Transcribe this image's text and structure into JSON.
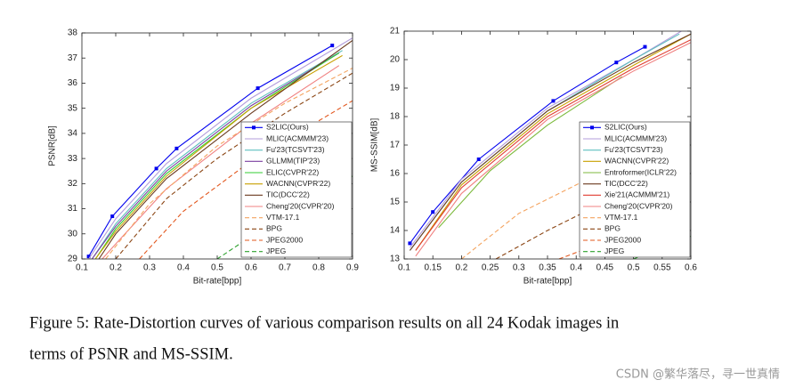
{
  "chart_data": [
    {
      "type": "line",
      "xlabel": "Bit-rate[bpp]",
      "ylabel": "PSNR[dB]",
      "xlim": [
        0.1,
        0.9
      ],
      "ylim": [
        29,
        38
      ],
      "xticks": [
        0.1,
        0.2,
        0.3,
        0.4,
        0.5,
        0.6,
        0.7,
        0.8,
        0.9
      ],
      "yticks": [
        29,
        30,
        31,
        32,
        33,
        34,
        35,
        36,
        37,
        38
      ],
      "legend": "lower right",
      "series": [
        {
          "name": "S2LIC(Ours)",
          "color": "#0000ee",
          "marker": "square",
          "x": [
            0.12,
            0.19,
            0.32,
            0.38,
            0.62,
            0.84
          ],
          "values": [
            29.1,
            30.7,
            32.6,
            33.4,
            35.8,
            37.5
          ]
        },
        {
          "name": "MLIC(ACMMM'23)",
          "color": "#b39ddb",
          "x": [
            0.12,
            0.2,
            0.35,
            0.6,
            0.9
          ],
          "values": [
            29.0,
            30.6,
            32.8,
            35.4,
            37.8
          ]
        },
        {
          "name": "Fu'23(TCSVT'23)",
          "color": "#5fbfbf",
          "x": [
            0.13,
            0.2,
            0.35,
            0.6,
            0.87
          ],
          "values": [
            29.0,
            30.4,
            32.6,
            35.2,
            37.3
          ]
        },
        {
          "name": "GLLMM(TIP'23)",
          "color": "#7b3fa0",
          "x": [
            0.13,
            0.2,
            0.35,
            0.6,
            0.86
          ],
          "values": [
            29.0,
            30.3,
            32.5,
            35.1,
            37.2
          ]
        },
        {
          "name": "ELIC(CVPR'22)",
          "color": "#33cc33",
          "x": [
            0.14,
            0.2,
            0.35,
            0.6,
            0.86
          ],
          "values": [
            29.0,
            30.2,
            32.4,
            35.0,
            37.2
          ]
        },
        {
          "name": "WACNN(CVPR'22)",
          "color": "#c8a000",
          "x": [
            0.14,
            0.2,
            0.35,
            0.6,
            0.87
          ],
          "values": [
            29.0,
            30.1,
            32.3,
            35.0,
            37.1
          ]
        },
        {
          "name": "TIC(DCC'22)",
          "color": "#6b3a1f",
          "x": [
            0.15,
            0.2,
            0.35,
            0.6,
            0.9
          ],
          "values": [
            29.0,
            30.0,
            32.2,
            34.8,
            37.7
          ]
        },
        {
          "name": "Cheng'20(CVPR'20)",
          "color": "#f08080",
          "x": [
            0.16,
            0.2,
            0.35,
            0.6,
            0.86
          ],
          "values": [
            29.0,
            29.6,
            31.8,
            34.4,
            36.7
          ]
        },
        {
          "name": "VTM-17.1",
          "color": "#f4a460",
          "dashed": true,
          "x": [
            0.17,
            0.3,
            0.5,
            0.7,
            0.9
          ],
          "values": [
            29.0,
            31.2,
            33.5,
            35.2,
            36.6
          ]
        },
        {
          "name": "BPG",
          "color": "#8b4513",
          "dashed": true,
          "x": [
            0.2,
            0.35,
            0.5,
            0.7,
            0.9
          ],
          "values": [
            29.0,
            31.4,
            33.0,
            34.8,
            36.4
          ]
        },
        {
          "name": "JPEG2000",
          "color": "#e2571e",
          "dashed": true,
          "x": [
            0.27,
            0.4,
            0.6,
            0.9
          ],
          "values": [
            29.0,
            30.9,
            32.9,
            35.3
          ]
        },
        {
          "name": "JPEG",
          "color": "#2ca02c",
          "dashed": true,
          "x": [
            0.5,
            0.7,
            0.9
          ],
          "values": [
            29.0,
            30.8,
            32.3
          ]
        }
      ]
    },
    {
      "type": "line",
      "xlabel": "Bit-rate[bpp]",
      "ylabel": "MS-SSIM[dB]",
      "xlim": [
        0.1,
        0.6
      ],
      "ylim": [
        13,
        21
      ],
      "xticks": [
        0.1,
        0.15,
        0.2,
        0.25,
        0.3,
        0.35,
        0.4,
        0.45,
        0.5,
        0.55,
        0.6
      ],
      "yticks": [
        13,
        14,
        15,
        16,
        17,
        18,
        19,
        20,
        21
      ],
      "legend": "lower right",
      "series": [
        {
          "name": "S2LIC(Ours)",
          "color": "#0000ee",
          "marker": "square",
          "x": [
            0.11,
            0.15,
            0.23,
            0.36,
            0.47,
            0.52
          ],
          "values": [
            13.55,
            14.65,
            16.5,
            18.55,
            19.9,
            20.45
          ]
        },
        {
          "name": "MLIC(ACMMM'23)",
          "color": "#b39ddb",
          "x": [
            0.11,
            0.2,
            0.35,
            0.5,
            0.6
          ],
          "values": [
            13.4,
            15.8,
            18.3,
            20.0,
            21.2
          ]
        },
        {
          "name": "Fu'23(TCSVT'23)",
          "color": "#5fbfbf",
          "x": [
            0.11,
            0.2,
            0.35,
            0.5,
            0.58
          ],
          "values": [
            13.3,
            15.7,
            18.2,
            20.0,
            20.9
          ]
        },
        {
          "name": "WACNN(CVPR'22)",
          "color": "#c8a000",
          "x": [
            0.12,
            0.2,
            0.35,
            0.5,
            0.6
          ],
          "values": [
            13.3,
            15.6,
            18.1,
            19.8,
            20.9
          ]
        },
        {
          "name": "Entroformer(ICLR'22)",
          "color": "#7cba3c",
          "x": [
            0.16,
            0.25,
            0.35,
            0.48
          ],
          "values": [
            14.1,
            16.1,
            17.7,
            19.4
          ]
        },
        {
          "name": "TIC(DCC'22)",
          "color": "#6b3a1f",
          "x": [
            0.11,
            0.2,
            0.35,
            0.5,
            0.6
          ],
          "values": [
            13.3,
            15.7,
            18.2,
            19.9,
            20.9
          ]
        },
        {
          "name": "Xie'21(ACMMM'21)",
          "color": "#e03c31",
          "x": [
            0.12,
            0.2,
            0.35,
            0.5,
            0.6
          ],
          "values": [
            13.3,
            15.5,
            18.0,
            19.7,
            20.7
          ]
        },
        {
          "name": "Cheng'20(CVPR'20)",
          "color": "#f08080",
          "x": [
            0.12,
            0.2,
            0.35,
            0.5,
            0.6
          ],
          "values": [
            13.1,
            15.3,
            17.9,
            19.6,
            20.6
          ]
        },
        {
          "name": "VTM-17.1",
          "color": "#f4a460",
          "dashed": true,
          "x": [
            0.2,
            0.3,
            0.4,
            0.46
          ],
          "values": [
            13.0,
            14.6,
            15.6,
            16.2
          ]
        },
        {
          "name": "BPG",
          "color": "#8b4513",
          "dashed": true,
          "x": [
            0.26,
            0.35,
            0.45
          ],
          "values": [
            13.0,
            14.0,
            15.0
          ]
        },
        {
          "name": "JPEG2000",
          "color": "#e2571e",
          "dashed": true,
          "x": [
            0.37,
            0.45,
            0.55
          ],
          "values": [
            13.0,
            13.6,
            14.3
          ]
        },
        {
          "name": "JPEG",
          "color": "#2ca02c",
          "dashed": true,
          "x": [
            0.5,
            0.6
          ],
          "values": [
            13.0,
            13.8
          ]
        }
      ]
    }
  ],
  "caption": [
    "Figure 5: Rate-Distortion curves of various comparison results on all 24 Kodak images in",
    "terms of PSNR and MS-SSIM."
  ],
  "watermark": "CSDN @繁华落尽，寻一世真情"
}
